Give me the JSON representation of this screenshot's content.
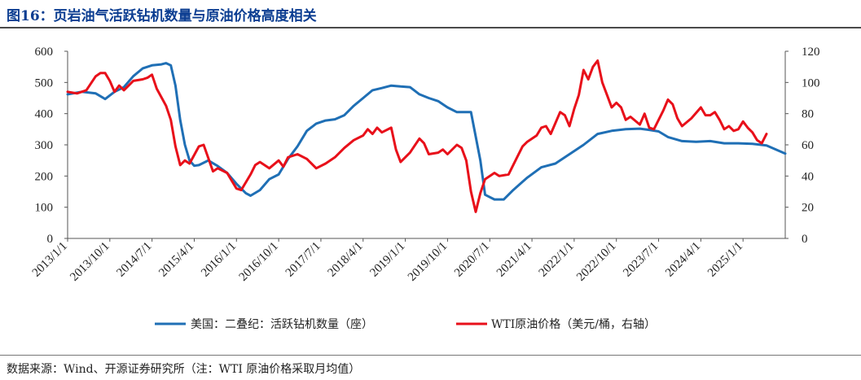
{
  "header": {
    "title": "图16：页岩油气活跃钻机数量与原油价格高度相关"
  },
  "footer": {
    "source": "数据来源：Wind、开源证券研究所（注：WTI 原油价格采取月均值）"
  },
  "chart_data": {
    "type": "line",
    "title": "图16：页岩油气活跃钻机数量与原油价格高度相关",
    "x_tick_labels": [
      "2013/1/1",
      "2013/10/1",
      "2014/7/1",
      "2015/4/1",
      "2016/1/1",
      "2016/10/1",
      "2017/7/1",
      "2018/4/1",
      "2019/1/1",
      "2019/10/1",
      "2020/7/1",
      "2021/4/1",
      "2022/1/1",
      "2022/10/1",
      "2023/7/1",
      "2024/4/1",
      "2025/1/1"
    ],
    "x_range": [
      "2013-01",
      "2025-10"
    ],
    "y_left": {
      "range": [
        0,
        600
      ],
      "ticks": [
        0,
        100,
        200,
        300,
        400,
        500,
        600
      ]
    },
    "y_right": {
      "range": [
        0,
        120
      ],
      "ticks": [
        0,
        20,
        40,
        60,
        80,
        100,
        120
      ]
    },
    "legend_position": "bottom",
    "grid": false,
    "series": [
      {
        "name": "美国：二叠纪：活跃钻机数量（座）",
        "axis": "left",
        "color": "#1f6fb5",
        "points": [
          [
            "2013-01",
            462
          ],
          [
            "2013-04",
            470
          ],
          [
            "2013-07",
            465
          ],
          [
            "2013-09",
            447
          ],
          [
            "2013-11",
            470
          ],
          [
            "2014-01",
            485
          ],
          [
            "2014-03",
            520
          ],
          [
            "2014-05",
            545
          ],
          [
            "2014-07",
            555
          ],
          [
            "2014-09",
            558
          ],
          [
            "2014-10",
            562
          ],
          [
            "2014-11",
            555
          ],
          [
            "2014-12",
            490
          ],
          [
            "2015-01",
            380
          ],
          [
            "2015-02",
            300
          ],
          [
            "2015-03",
            250
          ],
          [
            "2015-04",
            233
          ],
          [
            "2015-05",
            235
          ],
          [
            "2015-07",
            250
          ],
          [
            "2015-09",
            232
          ],
          [
            "2015-11",
            210
          ],
          [
            "2016-01",
            175
          ],
          [
            "2016-03",
            145
          ],
          [
            "2016-04",
            137
          ],
          [
            "2016-06",
            155
          ],
          [
            "2016-08",
            190
          ],
          [
            "2016-10",
            205
          ],
          [
            "2016-12",
            255
          ],
          [
            "2017-02",
            295
          ],
          [
            "2017-04",
            345
          ],
          [
            "2017-06",
            368
          ],
          [
            "2017-08",
            378
          ],
          [
            "2017-10",
            382
          ],
          [
            "2017-12",
            395
          ],
          [
            "2018-02",
            425
          ],
          [
            "2018-04",
            450
          ],
          [
            "2018-06",
            475
          ],
          [
            "2018-08",
            482
          ],
          [
            "2018-10",
            490
          ],
          [
            "2018-12",
            487
          ],
          [
            "2019-02",
            485
          ],
          [
            "2019-04",
            462
          ],
          [
            "2019-06",
            450
          ],
          [
            "2019-08",
            440
          ],
          [
            "2019-10",
            420
          ],
          [
            "2019-12",
            405
          ],
          [
            "2020-02",
            405
          ],
          [
            "2020-03",
            405
          ],
          [
            "2020-05",
            250
          ],
          [
            "2020-06",
            140
          ],
          [
            "2020-08",
            125
          ],
          [
            "2020-10",
            125
          ],
          [
            "2020-12",
            155
          ],
          [
            "2021-03",
            195
          ],
          [
            "2021-06",
            228
          ],
          [
            "2021-09",
            240
          ],
          [
            "2021-12",
            270
          ],
          [
            "2022-03",
            300
          ],
          [
            "2022-06",
            335
          ],
          [
            "2022-09",
            345
          ],
          [
            "2022-12",
            350
          ],
          [
            "2023-03",
            352
          ],
          [
            "2023-05",
            348
          ],
          [
            "2023-07",
            343
          ],
          [
            "2023-09",
            325
          ],
          [
            "2023-12",
            312
          ],
          [
            "2024-03",
            310
          ],
          [
            "2024-06",
            312
          ],
          [
            "2024-09",
            305
          ],
          [
            "2024-12",
            305
          ],
          [
            "2025-03",
            303
          ],
          [
            "2025-06",
            298
          ],
          [
            "2025-08",
            285
          ],
          [
            "2025-10",
            272
          ]
        ]
      },
      {
        "name": "WTI原油价格（美元/桶，右轴）",
        "axis": "right",
        "color": "#e8101a",
        "points": [
          [
            "2013-01",
            94
          ],
          [
            "2013-03",
            93
          ],
          [
            "2013-05",
            95
          ],
          [
            "2013-07",
            104
          ],
          [
            "2013-08",
            106
          ],
          [
            "2013-09",
            106
          ],
          [
            "2013-10",
            101
          ],
          [
            "2013-11",
            94
          ],
          [
            "2013-12",
            98
          ],
          [
            "2014-01",
            95
          ],
          [
            "2014-03",
            101
          ],
          [
            "2014-05",
            102
          ],
          [
            "2014-06",
            103
          ],
          [
            "2014-07",
            105
          ],
          [
            "2014-08",
            96
          ],
          [
            "2014-10",
            85
          ],
          [
            "2014-11",
            76
          ],
          [
            "2014-12",
            59
          ],
          [
            "2015-01",
            47
          ],
          [
            "2015-02",
            50
          ],
          [
            "2015-03",
            48
          ],
          [
            "2015-05",
            59
          ],
          [
            "2015-06",
            60
          ],
          [
            "2015-08",
            43
          ],
          [
            "2015-09",
            45
          ],
          [
            "2015-11",
            42
          ],
          [
            "2015-12",
            37
          ],
          [
            "2016-01",
            32
          ],
          [
            "2016-02",
            31
          ],
          [
            "2016-04",
            41
          ],
          [
            "2016-05",
            47
          ],
          [
            "2016-06",
            49
          ],
          [
            "2016-08",
            45
          ],
          [
            "2016-10",
            50
          ],
          [
            "2016-11",
            46
          ],
          [
            "2016-12",
            52
          ],
          [
            "2017-02",
            54
          ],
          [
            "2017-04",
            51
          ],
          [
            "2017-06",
            45
          ],
          [
            "2017-08",
            48
          ],
          [
            "2017-10",
            52
          ],
          [
            "2017-12",
            58
          ],
          [
            "2018-02",
            63
          ],
          [
            "2018-04",
            66
          ],
          [
            "2018-05",
            70
          ],
          [
            "2018-06",
            67
          ],
          [
            "2018-07",
            71
          ],
          [
            "2018-08",
            68
          ],
          [
            "2018-10",
            71
          ],
          [
            "2018-11",
            57
          ],
          [
            "2018-12",
            49
          ],
          [
            "2019-02",
            55
          ],
          [
            "2019-04",
            64
          ],
          [
            "2019-05",
            61
          ],
          [
            "2019-06",
            54
          ],
          [
            "2019-08",
            55
          ],
          [
            "2019-09",
            57
          ],
          [
            "2019-10",
            54
          ],
          [
            "2019-12",
            60
          ],
          [
            "2020-01",
            58
          ],
          [
            "2020-02",
            50
          ],
          [
            "2020-03",
            30
          ],
          [
            "2020-04",
            17
          ],
          [
            "2020-05",
            29
          ],
          [
            "2020-06",
            38
          ],
          [
            "2020-08",
            42
          ],
          [
            "2020-09",
            40
          ],
          [
            "2020-11",
            41
          ],
          [
            "2020-12",
            47
          ],
          [
            "2021-02",
            59
          ],
          [
            "2021-03",
            62
          ],
          [
            "2021-05",
            66
          ],
          [
            "2021-06",
            71
          ],
          [
            "2021-07",
            72
          ],
          [
            "2021-08",
            67
          ],
          [
            "2021-10",
            81
          ],
          [
            "2021-11",
            79
          ],
          [
            "2021-12",
            72
          ],
          [
            "2022-01",
            83
          ],
          [
            "2022-02",
            92
          ],
          [
            "2022-03",
            108
          ],
          [
            "2022-04",
            102
          ],
          [
            "2022-05",
            110
          ],
          [
            "2022-06",
            114
          ],
          [
            "2022-07",
            100
          ],
          [
            "2022-08",
            92
          ],
          [
            "2022-09",
            84
          ],
          [
            "2022-10",
            87
          ],
          [
            "2022-11",
            84
          ],
          [
            "2022-12",
            76
          ],
          [
            "2023-01",
            78
          ],
          [
            "2023-03",
            73
          ],
          [
            "2023-04",
            80
          ],
          [
            "2023-05",
            71
          ],
          [
            "2023-06",
            70
          ],
          [
            "2023-08",
            82
          ],
          [
            "2023-09",
            89
          ],
          [
            "2023-10",
            86
          ],
          [
            "2023-11",
            77
          ],
          [
            "2023-12",
            72
          ],
          [
            "2024-02",
            77
          ],
          [
            "2024-04",
            84
          ],
          [
            "2024-05",
            79
          ],
          [
            "2024-06",
            79
          ],
          [
            "2024-07",
            81
          ],
          [
            "2024-08",
            76
          ],
          [
            "2024-09",
            70
          ],
          [
            "2024-10",
            72
          ],
          [
            "2024-11",
            69
          ],
          [
            "2024-12",
            70
          ],
          [
            "2025-01",
            75
          ],
          [
            "2025-02",
            71
          ],
          [
            "2025-03",
            68
          ],
          [
            "2025-04",
            63
          ],
          [
            "2025-05",
            61
          ],
          [
            "2025-06",
            67
          ]
        ]
      }
    ]
  }
}
